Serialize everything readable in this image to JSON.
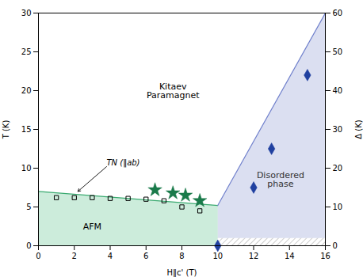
{
  "chart_data": {
    "type": "scatter",
    "xlabel": "H‖c' (T)",
    "ylabel": "T (K)",
    "y2label": "Δ (K)",
    "xlim": [
      0,
      16
    ],
    "ylim": [
      0,
      30
    ],
    "y2lim": [
      0,
      60
    ],
    "xticks": [
      0,
      2,
      4,
      6,
      8,
      10,
      12,
      14,
      16
    ],
    "yticks": [
      0,
      5,
      10,
      15,
      20,
      25,
      30
    ],
    "y2ticks": [
      0,
      10,
      20,
      30,
      40,
      50,
      60
    ],
    "grid": false,
    "series": [
      {
        "type": "polygon",
        "color": "#8dd5b0",
        "x": [
          0,
          0,
          10,
          10
        ],
        "values": [
          0,
          7.0,
          5.2,
          0
        ]
      },
      {
        "type": "polygon",
        "color": "#b0b8e0",
        "x": [
          10,
          16,
          16,
          10
        ],
        "values": [
          5.2,
          30,
          0,
          0
        ]
      },
      {
        "type": "hatch",
        "color": "white",
        "x": [
          10,
          10,
          16,
          16
        ],
        "values": [
          0,
          1.0,
          1.0,
          0
        ]
      },
      {
        "type": "line",
        "color": "#3aaa70",
        "x": [
          0,
          10
        ],
        "values": [
          7.0,
          5.2
        ]
      },
      {
        "type": "line",
        "color": "#7080cc",
        "x": [
          10,
          16
        ],
        "values": [
          5.2,
          30
        ]
      },
      {
        "type": "scatter",
        "marker": "open_square",
        "color": "black",
        "x": [
          1.0,
          2.0,
          3.0,
          4.0,
          5.0,
          6.0,
          7.0,
          8.0,
          9.0
        ],
        "values": [
          6.2,
          6.2,
          6.2,
          6.1,
          6.1,
          6.0,
          5.8,
          5.0,
          4.5
        ]
      },
      {
        "type": "scatter",
        "marker": "star",
        "color": "#1a7a4a",
        "x": [
          6.5,
          7.5,
          8.2,
          9.0
        ],
        "values": [
          7.2,
          6.8,
          6.5,
          5.8
        ]
      },
      {
        "type": "scatter",
        "marker": "diamond",
        "color": "#2040a0",
        "x": [
          10.0,
          12.0,
          13.0,
          15.0
        ],
        "values": [
          0.0,
          7.5,
          12.5,
          22.0
        ]
      }
    ],
    "annotations": [
      {
        "text": "Kitaev\nParamagnet",
        "x": 7.5,
        "y": 20,
        "color": "black"
      },
      {
        "text": "AFM",
        "x": 3.0,
        "y": 2.5,
        "color": "black"
      },
      {
        "text": "Disordered\nphase",
        "x": 13.5,
        "y": 8.5,
        "color": "#333333"
      },
      {
        "text": "TN (‖ab)",
        "x": 3.8,
        "y": 10.2,
        "arrow_x": 2.2,
        "arrow_y": 7.0,
        "color": "black"
      }
    ]
  }
}
